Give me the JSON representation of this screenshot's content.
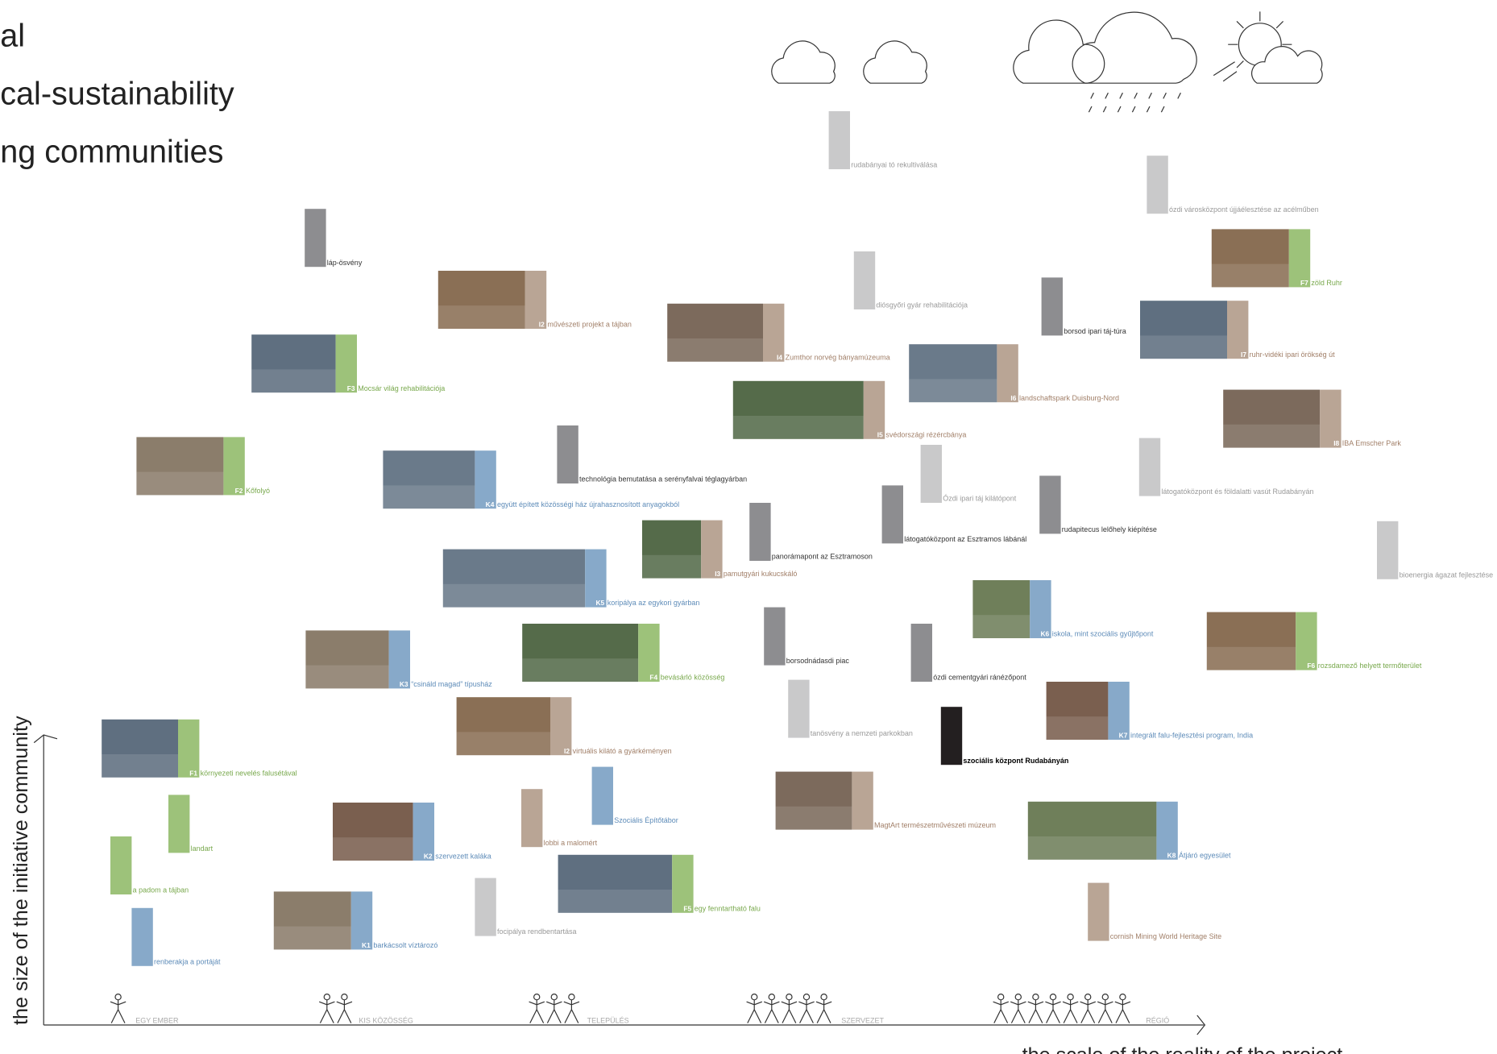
{
  "title_lines": [
    "al",
    "cal-sustainability",
    "ng communities"
  ],
  "x_axis_label": "the scale of the reality of the project",
  "y_axis_label": "the size of the initiative community",
  "scale_levels": [
    "EGY EMBER",
    "KIS KÖZÖSSÉG",
    "TELEPÜLÉS",
    "SZERVEZET",
    "RÉGIÓ"
  ],
  "items": [
    {
      "label": "láp-ösvény"
    },
    {
      "code": "I2",
      "label": "művészeti projekt a tájban"
    },
    {
      "code": "F3",
      "label": "Mocsár világ rehabilitációja"
    },
    {
      "code": "I4",
      "label": "Zumthor norvég bányamúzeuma"
    },
    {
      "label": "rudabányai tó rekultiválása"
    },
    {
      "label": "diósgyőri gyár rehabilitációja"
    },
    {
      "code": "I6",
      "label": "landschaftspark Duisburg-Nord"
    },
    {
      "label": "borsod ipari táj-túra"
    },
    {
      "label": "ózdi városközpont újjáélesztése az acélműben"
    },
    {
      "code": "F7",
      "label": "zöld Ruhr"
    },
    {
      "code": "I7",
      "label": "ruhr-vidéki ipari örökség út"
    },
    {
      "code": "I8",
      "label": "IBA Emscher Park"
    },
    {
      "code": "I5",
      "label": "svédországi rézércbánya"
    },
    {
      "code": "F2",
      "label": "Kőfolyó"
    },
    {
      "code": "K4",
      "label": "együtt épített közösségi ház újrahasznosított anyagokból"
    },
    {
      "label": "technológia bemutatása a serényfalvai téglagyárban"
    },
    {
      "label": "Ózdi ipari táj kilátópont"
    },
    {
      "label": "látogatóközpont és földalatti vasút Rudabányán"
    },
    {
      "label": "rudapitecus lelőhely kiépítése"
    },
    {
      "label": "látogatóközpont az Esztramos lábánál"
    },
    {
      "code": "I3",
      "label": "pamutgyári kukucskáló"
    },
    {
      "label": "panorámapont az Esztramoson"
    },
    {
      "code": "K5",
      "label": "koripálya az egykori gyárban"
    },
    {
      "label": "bioenergia ágazat fejlesztése"
    },
    {
      "code": "K6",
      "label": "iskola, mint szociális gyűjtőpont"
    },
    {
      "code": "F6",
      "label": "rozsdamező helyett termőterület"
    },
    {
      "label": "borsodnádasdi piac"
    },
    {
      "label": "ózdi cementgyári ránézőpont"
    },
    {
      "code": "F4",
      "label": "bevásárló közösség"
    },
    {
      "code": "K3",
      "label": "“csináld magad” típusház"
    },
    {
      "label": "tanösvény a nemzeti parkokban"
    },
    {
      "code": "K7",
      "label": "integrált falu-fejlesztési program, India"
    },
    {
      "label": "szociális központ Rudabányán"
    },
    {
      "code": "I2",
      "label": "virtuális kilátó a gyárkéményen"
    },
    {
      "code": "F1",
      "label": "környezeti nevelés falusétával"
    },
    {
      "label": "MagtArt természetművészeti múzeum"
    },
    {
      "label": "Szociális Építőtábor"
    },
    {
      "label": "lobbi a malomért"
    },
    {
      "label": "landart"
    },
    {
      "code": "K2",
      "label": "szervezett kaláka"
    },
    {
      "code": "K8",
      "label": "Átjáró egyesület"
    },
    {
      "label": "a padom a tájban"
    },
    {
      "code": "F5",
      "label": "egy fenntartható falu"
    },
    {
      "label": "focipálya rendbentartása"
    },
    {
      "label": "cornish Mining World Heritage Site"
    },
    {
      "code": "K1",
      "label": "barkácsolt víztározó"
    },
    {
      "label": "renberakja a portáját"
    }
  ]
}
